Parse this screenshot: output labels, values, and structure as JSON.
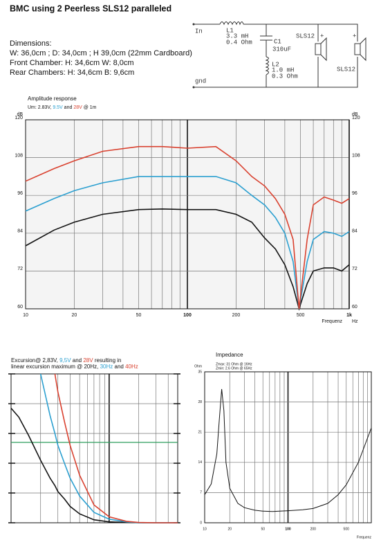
{
  "title": "BMC using 2 Peerless SLS12 paralleled",
  "dimensions": [
    "Dimensions:",
    "W: 36,0cm ; D: 34,0cm ; H 39,0cm (22mm Cardboard)",
    "Front Chamber: H: 34,6cm W: 8,0cm",
    "Rear Chambers: H: 34,6cm B: 9,6cm"
  ],
  "schematic": {
    "input": "In",
    "ground": "gnd",
    "l1": {
      "name": "L1",
      "value": "3.3 mH",
      "resistance": "0.4 Ohm"
    },
    "c1": {
      "name": "C1",
      "value": "310uF"
    },
    "l2": {
      "name": "L2",
      "value": "1.0 mH",
      "resistance": "0.3 Ohm"
    },
    "speakers": [
      "SLS12",
      "SLS12"
    ],
    "polarity": [
      "+",
      "+"
    ]
  },
  "chart_data": [
    {
      "type": "line",
      "title": "Amplitude response",
      "subtitle_parts": [
        {
          "text": "Um: 2.83V, "
        },
        {
          "text": "9.5V",
          "color": "#2a9fd0"
        },
        {
          "text": " and "
        },
        {
          "text": "28V",
          "color": "#d9402e"
        },
        {
          "text": " @ 1m"
        }
      ],
      "x_scale": "log",
      "xlim": [
        10,
        1000
      ],
      "xticks": [
        10,
        20,
        50,
        100,
        200,
        500,
        {
          "value": 1000,
          "label": "1k"
        }
      ],
      "xgrid": [
        10,
        20,
        30,
        40,
        50,
        60,
        70,
        80,
        90,
        100,
        200,
        300,
        400,
        500,
        600,
        700,
        800,
        900,
        1000
      ],
      "xgrid_bold": [
        100,
        1000
      ],
      "ylim": [
        60,
        120
      ],
      "yticks": [
        60,
        72,
        84,
        96,
        108,
        120
      ],
      "ytick_labels": "both",
      "y_unit": "dB",
      "x_label": "Frequenz",
      "x_unit": "Hz",
      "x": [
        10,
        15,
        20,
        30,
        50,
        70,
        100,
        150,
        200,
        250,
        300,
        350,
        400,
        450,
        490,
        550,
        600,
        700,
        800,
        900,
        1000
      ],
      "series": [
        {
          "name": "2.83V",
          "color": "#111111",
          "values": [
            80,
            85,
            87.5,
            90,
            91.5,
            91.7,
            91.5,
            91.5,
            90,
            87.5,
            82.5,
            79,
            74,
            67,
            60,
            68,
            72,
            73,
            73,
            72,
            74
          ]
        },
        {
          "name": "9.5V",
          "color": "#2a9fd0",
          "values": [
            91,
            95,
            97.5,
            100,
            102,
            102,
            102,
            102,
            100,
            96,
            93,
            89,
            84,
            75,
            60,
            75,
            82,
            84.5,
            84,
            83,
            84.5
          ]
        },
        {
          "name": "28V",
          "color": "#d9402e",
          "values": [
            100.5,
            104.5,
            107,
            110,
            111.5,
            111.5,
            111,
            111.5,
            107,
            102,
            99,
            95,
            90,
            82,
            60,
            82,
            93,
            95.5,
            94.5,
            93.5,
            95
          ]
        }
      ]
    },
    {
      "type": "line",
      "title_lines": [
        [
          {
            "text": "Excursion@ 2,83V, "
          },
          {
            "text": "9,5V",
            "color": "#2a9fd0"
          },
          {
            "text": " and "
          },
          {
            "text": "28V",
            "color": "#d9402e"
          },
          {
            "text": " resulting in"
          }
        ],
        [
          {
            "text": "linear excursion maximum @ 20Hz, "
          },
          {
            "text": "30Hz",
            "color": "#2a9fd0"
          },
          {
            "text": " and "
          },
          {
            "text": "40Hz",
            "color": "#d9402e"
          }
        ]
      ],
      "x_scale": "log",
      "xlim": [
        10,
        500
      ],
      "xgrid": [
        10,
        20,
        30,
        40,
        50,
        60,
        70,
        80,
        90,
        100,
        200,
        300,
        400,
        500
      ],
      "xgrid_bold": [
        100
      ],
      "ylim": [
        0,
        5
      ],
      "yticks": [
        0,
        1,
        2,
        3,
        4,
        5
      ],
      "ytick_labels": "none",
      "limit_line": {
        "value": 2.7,
        "color": "#2e9e5e"
      },
      "x": [
        10,
        12,
        15,
        20,
        25,
        28,
        30,
        35,
        40,
        50,
        70,
        100,
        150,
        200,
        300,
        500
      ],
      "series": [
        {
          "name": "2,83V",
          "color": "#111111",
          "values": [
            3.85,
            3.55,
            2.95,
            2.1,
            1.5,
            1.25,
            1.05,
            0.8,
            0.55,
            0.3,
            0.1,
            0.03,
            0.01,
            0,
            0,
            0
          ]
        },
        {
          "name": "9,5V",
          "color": "#2a9fd0",
          "values": [
            null,
            null,
            null,
            5,
            3.6,
            3.0,
            2.6,
            2.0,
            1.5,
            0.9,
            0.35,
            0.12,
            0.03,
            0,
            0,
            0
          ]
        },
        {
          "name": "28V",
          "color": "#d9402e",
          "values": [
            null,
            null,
            null,
            null,
            null,
            5,
            4.4,
            3.4,
            2.6,
            1.6,
            0.6,
            0.2,
            0.05,
            0.01,
            0,
            0
          ]
        }
      ]
    },
    {
      "type": "line",
      "title": "Impedance",
      "notes": [
        "Zmax: 31 Ohm @ 16Hz",
        "Zmin: 2.6 Ohm @ 65Hz"
      ],
      "x_scale": "log",
      "xlim": [
        10,
        1000
      ],
      "xticks": [
        10,
        20,
        50,
        100,
        200,
        500
      ],
      "xgrid": [
        10,
        20,
        30,
        40,
        50,
        60,
        70,
        80,
        90,
        100,
        200,
        300,
        400,
        500,
        600,
        700,
        800,
        900,
        1000
      ],
      "xgrid_bold": [
        100
      ],
      "ylim": [
        0,
        35
      ],
      "yticks": [
        0,
        7,
        14,
        21,
        28,
        35
      ],
      "ytick_labels": "left",
      "y_unit": "Ohm",
      "x_label": "Frequenz",
      "x": [
        10,
        12,
        14,
        15,
        16,
        17,
        18,
        20,
        25,
        30,
        40,
        50,
        65,
        100,
        150,
        200,
        300,
        400,
        500,
        700,
        1000
      ],
      "series": [
        {
          "name": "Impedance",
          "color": "#111111",
          "values": [
            6.5,
            9,
            16,
            24,
            31,
            26,
            14,
            8,
            4.5,
            3.5,
            2.9,
            2.7,
            2.6,
            2.8,
            3,
            3.3,
            4.5,
            6.5,
            8.8,
            14,
            22
          ]
        }
      ]
    }
  ]
}
